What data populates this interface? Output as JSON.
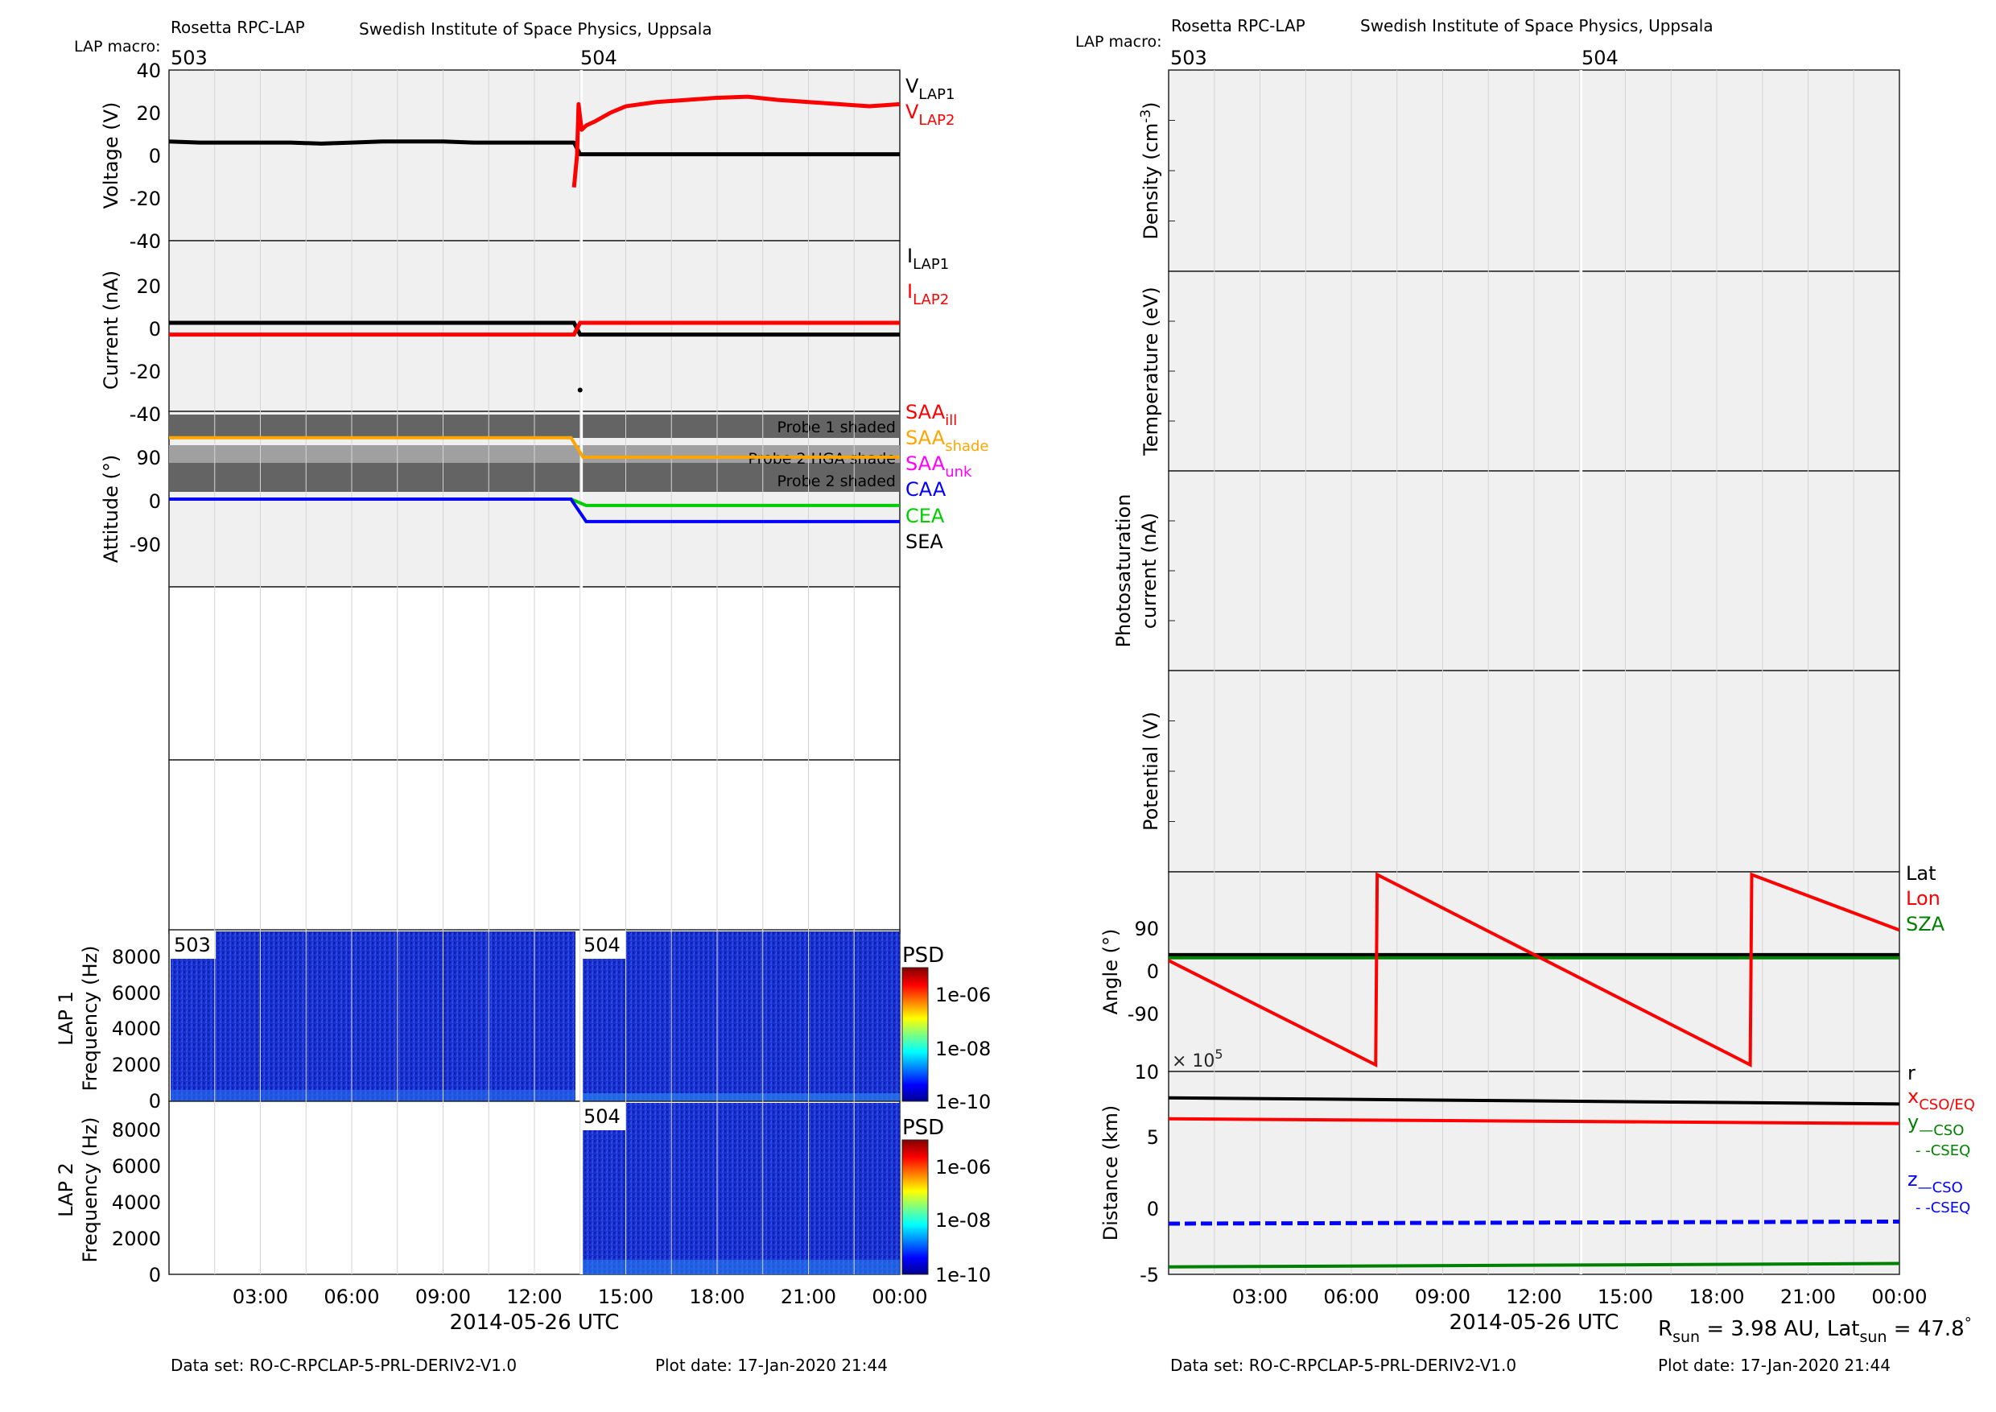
{
  "header": {
    "left_title": "Rosetta RPC-LAP",
    "left_institute": "Swedish Institute of Space Physics, Uppsala",
    "right_title": "Rosetta RPC-LAP",
    "right_institute": "Swedish Institute of Space Physics, Uppsala",
    "macro_label": "LAP macro:",
    "macro_503": "503",
    "macro_504": "504"
  },
  "footer": {
    "left_dataset": "Data set: RO-C-RPCLAP-5-PRL-DERIV2-V1.0",
    "left_plotdate": "Plot date: 17-Jan-2020 21:44",
    "right_dataset": "Data set: RO-C-RPCLAP-5-PRL-DERIV2-V1.0",
    "right_plotdate": "Plot date: 17-Jan-2020 21:44",
    "xlabel_left": "2014-05-26 UTC",
    "xlabel_right": "2014-05-26 UTC",
    "rsun": "R",
    "rsun_sub": "sun",
    "rsun_val": " = 3.98 AU, Lat",
    "lat_sub": "sun",
    "lat_val": " = 47.8",
    "deg": "°"
  },
  "time_ticks": [
    "03:00",
    "06:00",
    "09:00",
    "12:00",
    "15:00",
    "18:00",
    "21:00",
    "00:00"
  ],
  "colors": {
    "lap1": "#000000",
    "lap2": "#ff0000",
    "saa_shade": "#ffa500",
    "saa_unk": "#ff00ff",
    "caa": "#0000ff",
    "cea": "#00cc00",
    "sea": "#000000",
    "sza": "#008000",
    "panel_bg": "#f0f0f0",
    "shade_dark": "#646464",
    "shade_light": "#a0a0a0"
  },
  "legends": {
    "vlap1": "V",
    "vlap1_sub": "LAP1",
    "vlap2": "V",
    "vlap2_sub": "LAP2",
    "ilap1": "I",
    "ilap1_sub": "LAP1",
    "ilap2": "I",
    "ilap2_sub": "LAP2",
    "saa_ill": "SAA",
    "saa_ill_sub": "ill",
    "saa_shade": "SAA",
    "saa_shade_sub": "shade",
    "saa_unk": "SAA",
    "saa_unk_sub": "unk",
    "caa": "CAA",
    "cea": "CEA",
    "sea": "SEA",
    "lat": "Lat",
    "lon": "Lon",
    "sza": "SZA",
    "r": "r",
    "x": "x",
    "x_sub": "CSO/EQ",
    "y": "y",
    "y_sub1": "—CSO",
    "y_sub2": "- -CSEQ",
    "z": "z",
    "z_sub1": "—CSO",
    "z_sub2": "- -CSEQ"
  },
  "panel_labels": {
    "voltage": "Voltage (V)",
    "current": "Current (nA)",
    "attitude": "Attitude (°)",
    "lap1": "LAP 1",
    "lap2": "LAP 2",
    "freq": "Frequency (Hz)",
    "psd": "PSD",
    "density": "Density (cm",
    "density_sup": "-3",
    "density_close": ")",
    "temperature": "Temperature (eV)",
    "photo1": "Photosaturation",
    "photo2": "current (nA)",
    "potential": "Potential (V)",
    "angle": "Angle (°)",
    "distance": "Distance (km)",
    "exp_base": "× 10",
    "exp_pow": "5"
  },
  "shade_labels": {
    "probe1": "Probe 1 shaded",
    "probe2_hga": "Probe 2 HGA shade",
    "probe2": "Probe 2 shaded"
  },
  "chart_data": [
    {
      "type": "scatter",
      "ylabel": "Voltage (V)",
      "ylim": [
        -40,
        40
      ],
      "yticks": [
        "40",
        "20",
        "0",
        "-20",
        "-40"
      ],
      "xlim_hours": [
        0,
        24
      ],
      "series": [
        {
          "name": "VLAP1",
          "x": [
            0,
            1,
            2,
            3,
            4,
            5,
            6,
            7,
            8,
            9,
            10,
            11,
            12,
            13.3,
            13.5,
            15,
            18,
            21,
            24
          ],
          "y": [
            6.5,
            6,
            6,
            6,
            6,
            5.5,
            6,
            6.5,
            6.5,
            6.5,
            6,
            6,
            6,
            6,
            0.5,
            0.5,
            0.5,
            0.5,
            0.5
          ]
        },
        {
          "name": "VLAP2",
          "x": [
            13.3,
            13.4,
            13.45,
            13.55,
            13.7,
            14,
            14.5,
            15,
            16,
            17,
            18,
            19,
            20,
            21,
            22,
            23,
            24
          ],
          "y": [
            -15,
            0,
            24,
            12,
            14,
            16,
            20,
            23,
            25,
            26,
            27,
            27.5,
            26,
            25,
            24,
            23,
            24
          ]
        }
      ]
    },
    {
      "type": "scatter",
      "ylabel": "Current (nA)",
      "ylim": [
        -40,
        40
      ],
      "yticks": [
        "20",
        "0",
        "-20",
        "-40"
      ],
      "series": [
        {
          "name": "ILAP1",
          "x": [
            0,
            13.3,
            13.5,
            24
          ],
          "y": [
            1.5,
            1.5,
            -4,
            -4
          ]
        },
        {
          "name": "ILAP2",
          "x": [
            0,
            13.3,
            13.5,
            24
          ],
          "y": [
            -4,
            -4,
            1.5,
            1.5
          ]
        }
      ],
      "outliers": [
        {
          "x": 13.5,
          "y": -30
        }
      ]
    },
    {
      "type": "line",
      "ylabel": "Attitude (°)",
      "ylim": [
        -180,
        180
      ],
      "yticks": [
        "90",
        "0",
        "-90"
      ],
      "series": [
        {
          "name": "SAA_shade",
          "x": [
            0,
            13.2,
            13.6,
            24
          ],
          "y": [
            126,
            126,
            86,
            86
          ]
        },
        {
          "name": "CEA",
          "x": [
            0,
            13.2,
            13.7,
            24
          ],
          "y": [
            0,
            0,
            -13,
            -13
          ]
        },
        {
          "name": "CAA",
          "x": [
            0,
            13.2,
            13.7,
            24
          ],
          "y": [
            0,
            0,
            -46,
            -46
          ]
        }
      ],
      "shaded_bands": [
        {
          "label": "Probe 1 shaded",
          "from": 119,
          "to": 145
        },
        {
          "label": "Probe 2 HGA shade",
          "from": 86,
          "to": 119
        },
        {
          "label": "Probe 2 shaded",
          "from": 16,
          "to": 86
        }
      ]
    },
    {
      "type": "heatmap",
      "title": "LAP 1",
      "ylabel": "Frequency (Hz)",
      "ylim": [
        0,
        9500
      ],
      "yticks": [
        "8000",
        "6000",
        "4000",
        "2000",
        "0"
      ],
      "colorbar": {
        "label": "PSD",
        "ticks": [
          "1e-06",
          "1e-08",
          "1e-10"
        ]
      },
      "segments": [
        {
          "macro": "503",
          "from_hours": 0,
          "to_hours": 13.5
        },
        {
          "macro": "504",
          "from_hours": 13.6,
          "to_hours": 24
        }
      ]
    },
    {
      "type": "heatmap",
      "title": "LAP 2",
      "ylabel": "Frequency (Hz)",
      "ylim": [
        0,
        9500
      ],
      "yticks": [
        "8000",
        "6000",
        "4000",
        "2000",
        "0"
      ],
      "colorbar": {
        "label": "PSD",
        "ticks": [
          "1e-06",
          "1e-08",
          "1e-10"
        ]
      },
      "segments": [
        {
          "macro": "504",
          "from_hours": 13.6,
          "to_hours": 24
        }
      ]
    },
    {
      "type": "line",
      "ylabel": "Angle (°)",
      "ylim": [
        -180,
        180
      ],
      "yticks": [
        "90",
        "0",
        "-90"
      ],
      "series": [
        {
          "name": "Lat",
          "x": [
            0,
            24
          ],
          "y": [
            30,
            30
          ]
        },
        {
          "name": "SZA",
          "x": [
            0,
            24
          ],
          "y": [
            25,
            25
          ]
        },
        {
          "name": "Lon",
          "x": [
            0,
            6.8,
            6.85,
            19.1,
            19.15,
            24
          ],
          "y": [
            20,
            -168,
            175,
            -168,
            175,
            75
          ]
        }
      ]
    },
    {
      "type": "line",
      "ylabel": "Distance (km)",
      "ylim": [
        -5,
        10
      ],
      "yticks": [
        "10",
        "5",
        "0",
        "-5"
      ],
      "y_scale_note": "× 10^5",
      "series": [
        {
          "name": "r",
          "x": [
            0,
            24
          ],
          "y": [
            8.05,
            7.6
          ]
        },
        {
          "name": "x CSO/EQ",
          "x": [
            0,
            24
          ],
          "y": [
            6.5,
            6.15
          ]
        },
        {
          "name": "y CSO/CSEQ",
          "x": [
            0,
            24
          ],
          "y": [
            -4.45,
            -4.2
          ]
        },
        {
          "name": "z CSO/CSEQ",
          "x": [
            0,
            24
          ],
          "y": [
            -1.25,
            -1.1
          ]
        }
      ]
    }
  ]
}
